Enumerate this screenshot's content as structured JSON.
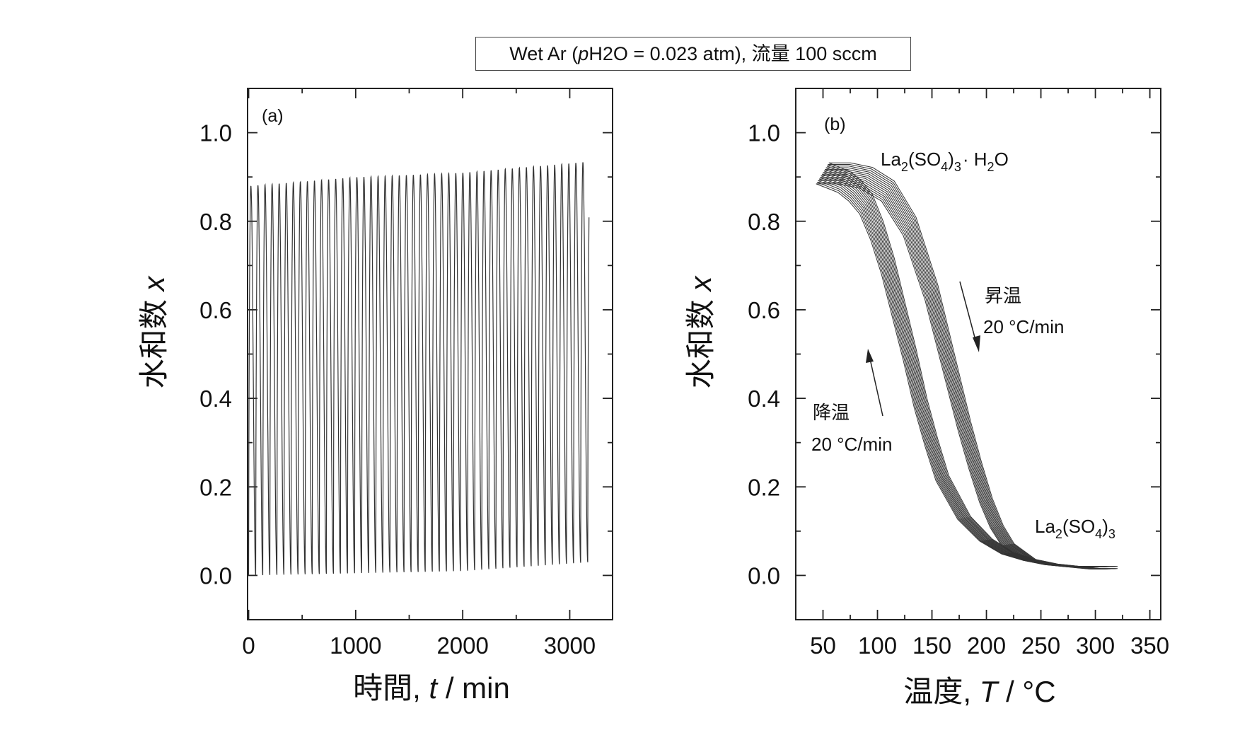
{
  "conditions": {
    "prefix": "Wet Ar (",
    "p_symbol": "p",
    "rest": "H2O = 0.023 atm), 流量 100 sccm"
  },
  "chart_data": [
    {
      "type": "line",
      "panel_label": "(a)",
      "xlabel": "時間, t / min",
      "xlabel_parts": {
        "main": "時間, ",
        "var": "t",
        "unit": " / min"
      },
      "ylabel": "水和数 x",
      "ylabel_parts": {
        "main": "水和数 ",
        "var": "x"
      },
      "xlim": [
        -10,
        3400
      ],
      "ylim": [
        -0.1,
        1.1
      ],
      "xticks": [
        0,
        1000,
        2000,
        3000
      ],
      "yticks": [
        0.0,
        0.2,
        0.4,
        0.6,
        0.8,
        1.0
      ],
      "ytick_labels": [
        "0.0",
        "0.2",
        "0.4",
        "0.6",
        "0.8",
        "1.0"
      ],
      "grid": false,
      "color": "#333333",
      "series": [
        {
          "cycle_period_min": 66,
          "n_cycles": 48,
          "x_start": 0,
          "x_end": 3180,
          "peaks": {
            "x": [
              0,
              1000,
              2000,
              3180
            ],
            "y": [
              0.88,
              0.9,
              0.91,
              0.935
            ]
          },
          "troughs": {
            "x": [
              0,
              1000,
              2000,
              3180
            ],
            "y": [
              0.0,
              0.005,
              0.01,
              0.03
            ]
          }
        }
      ]
    },
    {
      "type": "line",
      "panel_label": "(b)",
      "xlabel": "温度, T / °C",
      "xlabel_parts": {
        "main": "温度, ",
        "var": "T",
        "unit": " / °C"
      },
      "ylabel": "水和数 x",
      "ylabel_parts": {
        "main": "水和数 ",
        "var": "x"
      },
      "xlim": [
        25,
        360
      ],
      "ylim": [
        -0.1,
        1.1
      ],
      "xticks": [
        50,
        100,
        150,
        200,
        250,
        300,
        350
      ],
      "yticks": [
        0.0,
        0.2,
        0.4,
        0.6,
        0.8,
        1.0
      ],
      "ytick_labels": [
        "0.0",
        "0.2",
        "0.4",
        "0.6",
        "0.8",
        "1.0"
      ],
      "grid": false,
      "color": "#333333",
      "series": [
        {
          "branch": "heating",
          "x": [
            50,
            70,
            90,
            110,
            130,
            150,
            160,
            170,
            180,
            190,
            200,
            210,
            220,
            240,
            260,
            280,
            300,
            315
          ],
          "y": [
            0.91,
            0.91,
            0.9,
            0.87,
            0.79,
            0.64,
            0.54,
            0.44,
            0.34,
            0.25,
            0.17,
            0.11,
            0.07,
            0.035,
            0.025,
            0.02,
            0.02,
            0.02
          ]
        },
        {
          "branch": "cooling",
          "x": [
            315,
            300,
            280,
            260,
            240,
            220,
            200,
            180,
            160,
            150,
            140,
            130,
            120,
            110,
            100,
            90,
            80,
            70,
            60,
            50
          ],
          "y": [
            0.015,
            0.015,
            0.02,
            0.025,
            0.035,
            0.05,
            0.08,
            0.13,
            0.22,
            0.3,
            0.39,
            0.5,
            0.6,
            0.7,
            0.78,
            0.84,
            0.87,
            0.89,
            0.9,
            0.91
          ]
        }
      ],
      "annotations": {
        "hydrate_main": "La",
        "hydrate_sub1": "2",
        "hydrate_mid": "(SO",
        "hydrate_sub2": "4",
        "hydrate_close": ")",
        "hydrate_sub3": "3",
        "hydrate_dot": "· H",
        "hydrate_sub4": "2",
        "hydrate_end": "O",
        "anhydrate_main": "La",
        "anhydrate_sub1": "2",
        "anhydrate_mid": "(SO",
        "anhydrate_sub2": "4",
        "anhydrate_close": ")",
        "anhydrate_sub3": "3",
        "heating_label": "昇温",
        "heating_rate": "20 °C/min",
        "cooling_label": "降温",
        "cooling_rate": "20 °C/min"
      }
    }
  ]
}
